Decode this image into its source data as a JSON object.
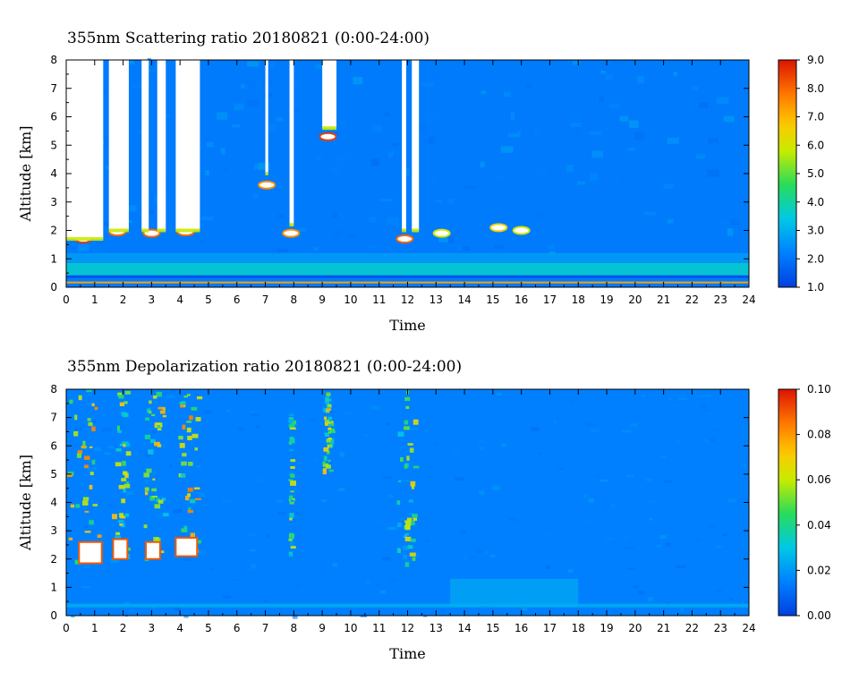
{
  "chart_data": [
    {
      "type": "heatmap",
      "title": "355nm Scattering ratio  20180821 (0:00-24:00)",
      "xlabel": "Time",
      "ylabel": "Altitude [km]",
      "x_ticks": [
        "0",
        "1",
        "2",
        "3",
        "4",
        "5",
        "6",
        "7",
        "8",
        "9",
        "10",
        "11",
        "12",
        "13",
        "14",
        "15",
        "16",
        "17",
        "18",
        "19",
        "20",
        "21",
        "22",
        "23",
        "24"
      ],
      "y_ticks": [
        "0",
        "1",
        "2",
        "3",
        "4",
        "5",
        "6",
        "7",
        "8"
      ],
      "xlim": [
        0,
        24
      ],
      "ylim": [
        0,
        8
      ],
      "colorbar": {
        "min": 1.0,
        "max": 9.0,
        "labels": [
          "1.0",
          "2.0",
          "3.0",
          "4.0",
          "5.0",
          "6.0",
          "7.0",
          "8.0",
          "9.0"
        ]
      },
      "background_level": 2.1,
      "boundary_layer_level": 3.6,
      "no_data_bands": [
        [
          0.0,
          1.3
        ],
        [
          1.5,
          2.2
        ],
        [
          2.65,
          2.9
        ],
        [
          3.2,
          3.5
        ],
        [
          3.85,
          4.7
        ],
        [
          7.0,
          7.1
        ],
        [
          7.85,
          8.0
        ],
        [
          9.0,
          9.5
        ],
        [
          11.8,
          11.95
        ],
        [
          12.15,
          12.4
        ]
      ],
      "no_data_bottoms_km": [
        1.7,
        2.0,
        2.0,
        2.0,
        2.0,
        4.0,
        2.2,
        5.6,
        2.0,
        2.0
      ],
      "cloud_features": [
        {
          "t": 0.6,
          "alt": 1.7,
          "level": 8.5
        },
        {
          "t": 1.8,
          "alt": 1.95,
          "level": 8.0
        },
        {
          "t": 3.0,
          "alt": 1.9,
          "level": 8.0
        },
        {
          "t": 4.2,
          "alt": 1.95,
          "level": 8.0
        },
        {
          "t": 7.05,
          "alt": 3.6,
          "level": 7.5
        },
        {
          "t": 7.9,
          "alt": 1.9,
          "level": 7.5
        },
        {
          "t": 9.2,
          "alt": 5.3,
          "level": 8.5
        },
        {
          "t": 11.9,
          "alt": 1.7,
          "level": 8.0
        },
        {
          "t": 13.2,
          "alt": 1.9,
          "level": 6.0
        },
        {
          "t": 15.2,
          "alt": 2.1,
          "level": 6.5
        },
        {
          "t": 16.0,
          "alt": 2.0,
          "level": 6.0
        }
      ]
    },
    {
      "type": "heatmap",
      "title": "355nm Depolarization ratio  20180821 (0:00-24:00)",
      "xlabel": "Time",
      "ylabel": "Altitude [km]",
      "x_ticks": [
        "0",
        "1",
        "2",
        "3",
        "4",
        "5",
        "6",
        "7",
        "8",
        "9",
        "10",
        "11",
        "12",
        "13",
        "14",
        "15",
        "16",
        "17",
        "18",
        "19",
        "20",
        "21",
        "22",
        "23",
        "24"
      ],
      "y_ticks": [
        "0",
        "1",
        "2",
        "3",
        "4",
        "5",
        "6",
        "7",
        "8"
      ],
      "xlim": [
        0,
        24
      ],
      "ylim": [
        0,
        8
      ],
      "colorbar": {
        "min": 0.0,
        "max": 0.1,
        "labels": [
          "0.00",
          "0.02",
          "0.04",
          "0.06",
          "0.08",
          "0.10"
        ]
      },
      "background_level": 0.015,
      "high_depol_columns": [
        {
          "t0": 0.0,
          "t1": 1.2,
          "alt0": 1.8,
          "alt1": 8.0,
          "level": 0.06
        },
        {
          "t0": 1.6,
          "t1": 2.2,
          "alt0": 1.9,
          "alt1": 8.0,
          "level": 0.05
        },
        {
          "t0": 2.7,
          "t1": 3.5,
          "alt0": 1.9,
          "alt1": 8.0,
          "level": 0.055
        },
        {
          "t0": 3.9,
          "t1": 4.7,
          "alt0": 1.9,
          "alt1": 8.0,
          "level": 0.06
        },
        {
          "t0": 7.8,
          "t1": 8.0,
          "alt0": 2.0,
          "alt1": 8.0,
          "level": 0.04
        },
        {
          "t0": 9.0,
          "t1": 9.4,
          "alt0": 5.0,
          "alt1": 8.0,
          "level": 0.05
        },
        {
          "t0": 11.6,
          "t1": 12.3,
          "alt0": 1.7,
          "alt1": 8.0,
          "level": 0.045
        }
      ],
      "saturated_patches": [
        {
          "t0": 0.45,
          "t1": 1.25,
          "alt0": 1.85,
          "alt1": 2.6
        },
        {
          "t0": 1.65,
          "t1": 2.15,
          "alt0": 2.0,
          "alt1": 2.7
        },
        {
          "t0": 2.8,
          "t1": 3.3,
          "alt0": 2.0,
          "alt1": 2.6
        },
        {
          "t0": 3.85,
          "t1": 4.6,
          "alt0": 2.1,
          "alt1": 2.75
        }
      ]
    }
  ]
}
